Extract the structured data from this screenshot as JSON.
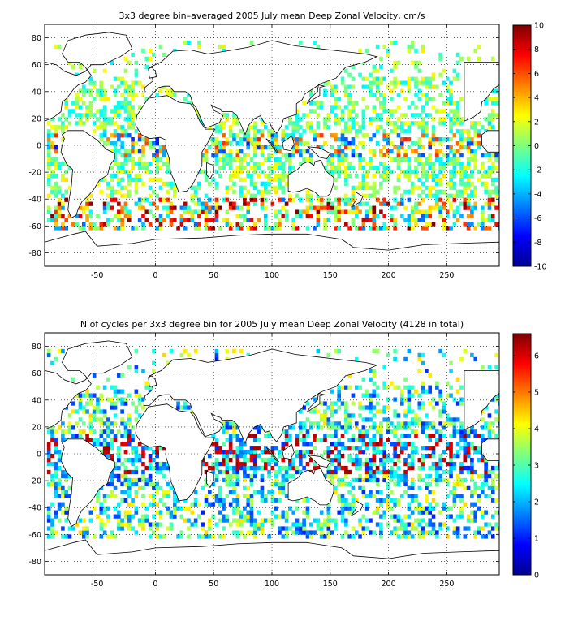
{
  "chart_data": [
    {
      "type": "heatmap",
      "title": "3x3 degree bin–averaged 2005 July mean Deep Zonal Velocity, cm/s",
      "xlabel": "",
      "ylabel": "",
      "xlim": [
        -95,
        295
      ],
      "ylim": [
        -90,
        90
      ],
      "x_ticks": [
        -50,
        0,
        50,
        100,
        150,
        200,
        250
      ],
      "y_ticks": [
        -80,
        -60,
        -40,
        -20,
        0,
        20,
        40,
        60,
        80
      ],
      "colorbar": {
        "min": -10,
        "max": 10,
        "ticks": [
          -10,
          -8,
          -6,
          -4,
          -2,
          0,
          2,
          4,
          6,
          8,
          10
        ],
        "colormap": "jet"
      },
      "bin_size_deg": 3,
      "grid": true
    },
    {
      "type": "heatmap",
      "title": "N of cycles per 3x3 degree bin for 2005 July mean Deep Zonal Velocity (4128 in total)",
      "xlabel": "",
      "ylabel": "",
      "xlim": [
        -95,
        295
      ],
      "ylim": [
        -90,
        90
      ],
      "x_ticks": [
        -50,
        0,
        50,
        100,
        150,
        200,
        250
      ],
      "y_ticks": [
        -80,
        -60,
        -40,
        -20,
        0,
        20,
        40,
        60,
        80
      ],
      "colorbar": {
        "min": 0,
        "max": 6.6,
        "ticks": [
          0,
          1,
          2,
          3,
          4,
          5,
          6
        ],
        "colormap": "jet"
      },
      "bin_size_deg": 3,
      "total_cycles": 4128,
      "grid": true
    }
  ]
}
